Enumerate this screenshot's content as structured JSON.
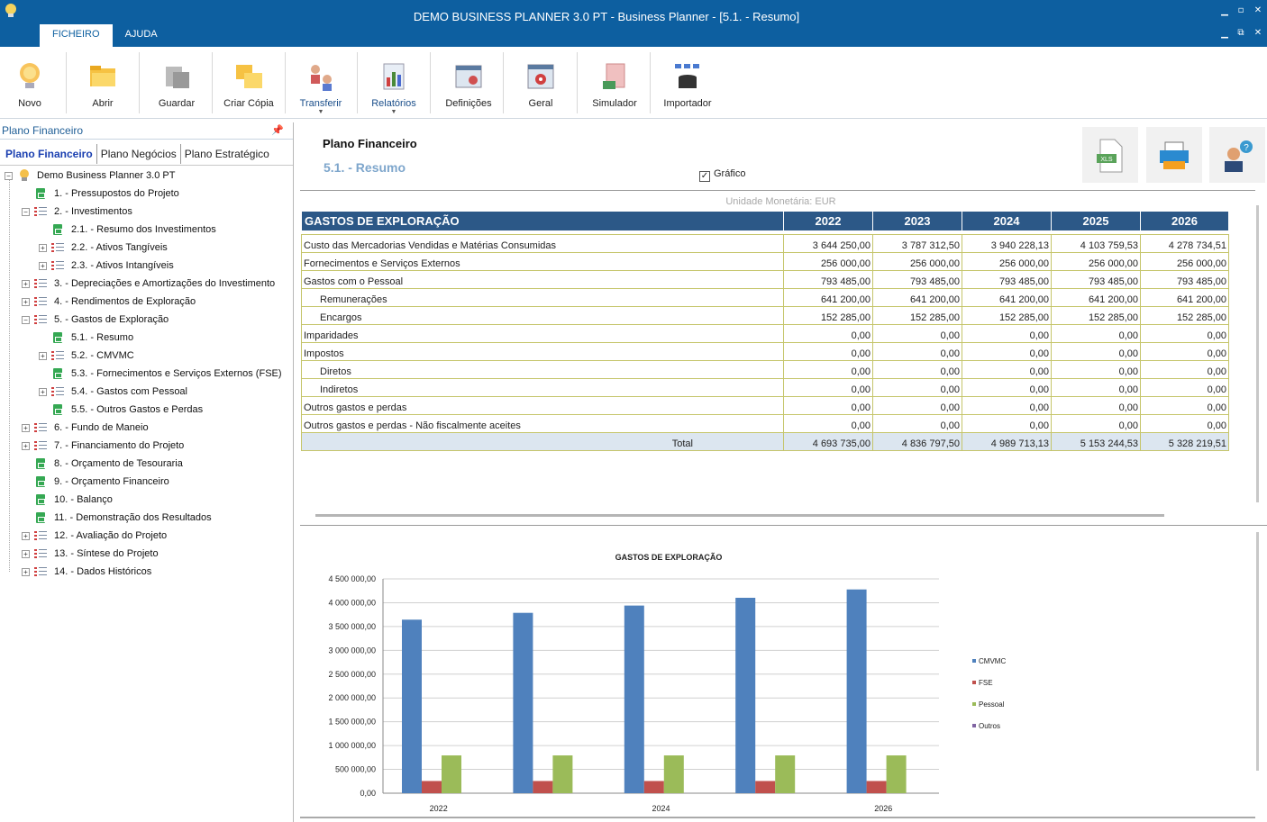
{
  "window": {
    "title": "DEMO BUSINESS PLANNER 3.0 PT - Business Planner - [5.1. - Resumo]",
    "tabs": [
      "FICHEIRO",
      "AJUDA"
    ]
  },
  "ribbon": {
    "buttons": [
      {
        "label": "Novo",
        "icon": "lightbulb-icon"
      },
      {
        "label": "Abrir",
        "icon": "folder-open-icon"
      },
      {
        "label": "Guardar",
        "icon": "save-disk-icon"
      },
      {
        "label": "Criar Cópia",
        "icon": "copy-folder-icon"
      },
      {
        "label": "Transferir",
        "icon": "transfer-users-icon"
      },
      {
        "label": "Relatórios",
        "icon": "reports-chart-icon"
      },
      {
        "label": "Definições",
        "icon": "settings-calendar-icon"
      },
      {
        "label": "Geral",
        "icon": "gear-icon"
      },
      {
        "label": "Simulador",
        "icon": "simulator-calculator-icon"
      },
      {
        "label": "Importador",
        "icon": "database-import-icon"
      }
    ]
  },
  "left_panel": {
    "header": "Plano Financeiro",
    "tabs": [
      "Plano Financeiro",
      "Plano Negócios",
      "Plano Estratégico"
    ],
    "tree": [
      {
        "label": "Demo Business Planner 3.0 PT",
        "level": 0,
        "type": "root",
        "toggle": "−"
      },
      {
        "label": "1. - Pressupostos do Projeto",
        "level": 1,
        "type": "doc",
        "toggle": ""
      },
      {
        "label": "2. - Investimentos",
        "level": 1,
        "type": "list",
        "toggle": "−"
      },
      {
        "label": "2.1. - Resumo dos Investimentos",
        "level": 2,
        "type": "doc",
        "toggle": ""
      },
      {
        "label": "2.2. - Ativos Tangíveis",
        "level": 2,
        "type": "list",
        "toggle": "+"
      },
      {
        "label": "2.3. - Ativos Intangíveis",
        "level": 2,
        "type": "list",
        "toggle": "+"
      },
      {
        "label": "3. - Depreciações e Amortizações do Investimento",
        "level": 1,
        "type": "list",
        "toggle": "+"
      },
      {
        "label": "4. - Rendimentos de Exploração",
        "level": 1,
        "type": "list",
        "toggle": "+"
      },
      {
        "label": "5. - Gastos de Exploração",
        "level": 1,
        "type": "list",
        "toggle": "−"
      },
      {
        "label": "5.1. - Resumo",
        "level": 2,
        "type": "doc",
        "toggle": ""
      },
      {
        "label": "5.2. - CMVMC",
        "level": 2,
        "type": "list",
        "toggle": "+"
      },
      {
        "label": "5.3. - Fornecimentos e Serviços Externos (FSE)",
        "level": 2,
        "type": "doc",
        "toggle": ""
      },
      {
        "label": "5.4. - Gastos com Pessoal",
        "level": 2,
        "type": "list",
        "toggle": "+"
      },
      {
        "label": "5.5. - Outros Gastos e Perdas",
        "level": 2,
        "type": "doc",
        "toggle": ""
      },
      {
        "label": "6. - Fundo de Maneio",
        "level": 1,
        "type": "list",
        "toggle": "+"
      },
      {
        "label": "7. - Financiamento do Projeto",
        "level": 1,
        "type": "list",
        "toggle": "+"
      },
      {
        "label": "8. - Orçamento de Tesouraria",
        "level": 1,
        "type": "doc",
        "toggle": ""
      },
      {
        "label": "9. - Orçamento Financeiro",
        "level": 1,
        "type": "doc",
        "toggle": ""
      },
      {
        "label": "10. - Balanço",
        "level": 1,
        "type": "doc",
        "toggle": ""
      },
      {
        "label": "11. - Demonstração dos Resultados",
        "level": 1,
        "type": "doc",
        "toggle": ""
      },
      {
        "label": "12. - Avaliação do Projeto",
        "level": 1,
        "type": "list",
        "toggle": "+"
      },
      {
        "label": "13. - Síntese do Projeto",
        "level": 1,
        "type": "list",
        "toggle": "+"
      },
      {
        "label": "14. - Dados Históricos",
        "level": 1,
        "type": "list",
        "toggle": "+"
      }
    ]
  },
  "main": {
    "title": "Plano Financeiro",
    "subtitle": "5.1. - Resumo",
    "chart_checkbox": {
      "label": "Gráfico",
      "checked": true
    },
    "toolbar_icons": [
      "xls-export-icon",
      "printer-icon",
      "help-user-icon"
    ],
    "currency_note": "Unidade Monetária: EUR"
  },
  "table": {
    "header": "GASTOS DE EXPLORAÇÃO",
    "years": [
      "2022",
      "2023",
      "2024",
      "2025",
      "2026"
    ],
    "rows": [
      {
        "label": "Custo das Mercadorias Vendidas  e Matérias Consumidas",
        "indent": false,
        "values": [
          "3 644 250,00",
          "3 787 312,50",
          "3 940 228,13",
          "4 103 759,53",
          "4 278 734,51"
        ]
      },
      {
        "label": "Fornecimentos e Serviços Externos",
        "indent": false,
        "values": [
          "256 000,00",
          "256 000,00",
          "256 000,00",
          "256 000,00",
          "256 000,00"
        ]
      },
      {
        "label": "Gastos com o Pessoal",
        "indent": false,
        "values": [
          "793 485,00",
          "793 485,00",
          "793 485,00",
          "793 485,00",
          "793 485,00"
        ]
      },
      {
        "label": "Remunerações",
        "indent": true,
        "values": [
          "641 200,00",
          "641 200,00",
          "641 200,00",
          "641 200,00",
          "641 200,00"
        ]
      },
      {
        "label": "Encargos",
        "indent": true,
        "values": [
          "152 285,00",
          "152 285,00",
          "152 285,00",
          "152 285,00",
          "152 285,00"
        ]
      },
      {
        "label": "Imparidades",
        "indent": false,
        "values": [
          "0,00",
          "0,00",
          "0,00",
          "0,00",
          "0,00"
        ]
      },
      {
        "label": "Impostos",
        "indent": false,
        "values": [
          "0,00",
          "0,00",
          "0,00",
          "0,00",
          "0,00"
        ]
      },
      {
        "label": "Diretos",
        "indent": true,
        "values": [
          "0,00",
          "0,00",
          "0,00",
          "0,00",
          "0,00"
        ]
      },
      {
        "label": "Indiretos",
        "indent": true,
        "values": [
          "0,00",
          "0,00",
          "0,00",
          "0,00",
          "0,00"
        ]
      },
      {
        "label": "Outros gastos e perdas",
        "indent": false,
        "values": [
          "0,00",
          "0,00",
          "0,00",
          "0,00",
          "0,00"
        ]
      },
      {
        "label": "Outros gastos e perdas - Não fiscalmente aceites",
        "indent": false,
        "values": [
          "0,00",
          "0,00",
          "0,00",
          "0,00",
          "0,00"
        ]
      }
    ],
    "total": {
      "label": "Total",
      "values": [
        "4 693 735,00",
        "4 836 797,50",
        "4 989 713,13",
        "5 153 244,53",
        "5 328 219,51"
      ]
    }
  },
  "chart_data": {
    "type": "bar",
    "title": "GASTOS DE EXPLORAÇÃO",
    "categories": [
      "2022",
      "2023",
      "2024",
      "2025",
      "2026"
    ],
    "x_tick_labels_visible": [
      "2022",
      "",
      "2024",
      "",
      "2026"
    ],
    "ylim": [
      0,
      4500000
    ],
    "y_ticks": [
      "0,00",
      "500 000,00",
      "1 000 000,00",
      "1 500 000,00",
      "2 000 000,00",
      "2 500 000,00",
      "3 000 000,00",
      "3 500 000,00",
      "4 000 000,00",
      "4 500 000,00"
    ],
    "grid": true,
    "legend_position": "right",
    "series": [
      {
        "name": "CMVMC",
        "color": "#4f81bd",
        "values": [
          3644250.0,
          3787312.5,
          3940228.13,
          4103759.53,
          4278734.51
        ]
      },
      {
        "name": "FSE",
        "color": "#c0504d",
        "values": [
          256000,
          256000,
          256000,
          256000,
          256000
        ]
      },
      {
        "name": "Pessoal",
        "color": "#9bbb59",
        "values": [
          793485,
          793485,
          793485,
          793485,
          793485
        ]
      },
      {
        "name": "Outros",
        "color": "#8064a2",
        "values": [
          0,
          0,
          0,
          0,
          0
        ]
      }
    ]
  }
}
